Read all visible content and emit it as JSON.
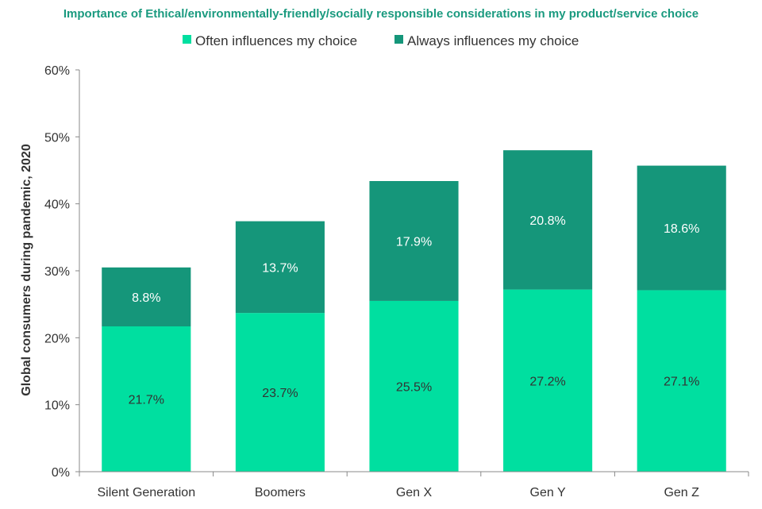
{
  "chart_data": {
    "type": "bar",
    "stacked": true,
    "title": "Importance of Ethical/environmentally-friendly/socially responsible considerations in my product/service choice",
    "ylabel": "Global consumers during pandemic, 2020",
    "xlabel": "",
    "categories": [
      "Silent Generation",
      "Boomers",
      "Gen X",
      "Gen Y",
      "Gen Z"
    ],
    "series": [
      {
        "name": "Often influences my choice",
        "values": [
          21.7,
          23.7,
          25.5,
          27.2,
          27.1
        ],
        "color": "#00dfa0",
        "label_color": "#333333"
      },
      {
        "name": "Always influences my choice",
        "values": [
          8.8,
          13.7,
          17.9,
          20.8,
          18.6
        ],
        "color": "#15967a",
        "label_color": "#ffffff"
      }
    ],
    "data_labels": [
      [
        "21.7%",
        "23.7%",
        "25.5%",
        "27.2%",
        "27.1%"
      ],
      [
        "8.8%",
        "13.7%",
        "17.9%",
        "20.8%",
        "18.6%"
      ]
    ],
    "ylim": [
      0,
      60
    ],
    "yticks": [
      0,
      10,
      20,
      30,
      40,
      50,
      60
    ],
    "ytick_labels": [
      "0%",
      "10%",
      "20%",
      "30%",
      "40%",
      "50%",
      "60%"
    ],
    "legend_position": "top",
    "grid": false
  }
}
